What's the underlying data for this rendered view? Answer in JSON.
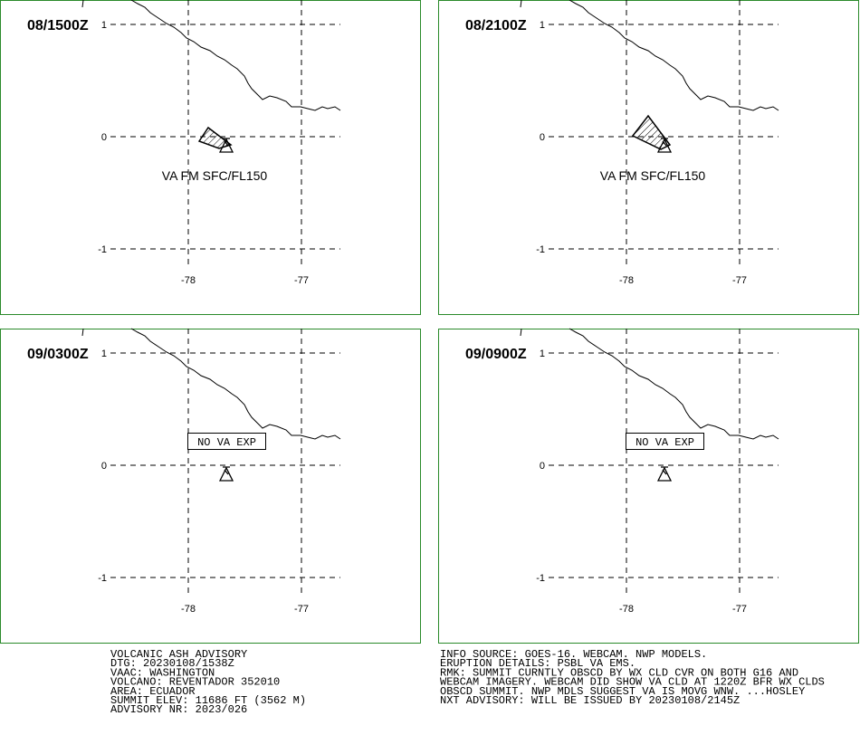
{
  "panels": [
    {
      "time": "08/1500Z",
      "annotation": "VA FM SFC/FL150"
    },
    {
      "time": "08/2100Z",
      "annotation": "VA FM SFC/FL150"
    },
    {
      "time": "09/0300Z",
      "annotation": "NO VA EXP"
    },
    {
      "time": "09/0900Z",
      "annotation": "NO VA EXP"
    }
  ],
  "lat_labels": [
    "1",
    "0",
    "-1"
  ],
  "lon_labels": [
    "-78",
    "-77"
  ],
  "footer_left": [
    "VOLCANIC ASH ADVISORY",
    "DTG: 20230108/1538Z",
    "VAAC: WASHINGTON",
    "VOLCANO: REVENTADOR 352010",
    "AREA: ECUADOR",
    "SUMMIT ELEV: 11686 FT (3562 M)",
    "ADVISORY NR: 2023/026"
  ],
  "footer_right": [
    "INFO SOURCE: GOES-16. WEBCAM. NWP MODELS.",
    "ERUPTION DETAILS: PSBL VA EMS.",
    "RMK: SUMMIT CURNTLY OBSCD BY WX CLD CVR ON BOTH G16 AND",
    "WEBCAM IMAGERY. WEBCAM DID SHOW VA CLD AT 1220Z BFR WX CLDS",
    "OBSCD SUMMIT. NWP MDLS SUGGEST VA IS MOVG WNW. ...HOSLEY",
    "NXT ADVISORY: WILL BE ISSUED BY 20230108/2145Z"
  ]
}
